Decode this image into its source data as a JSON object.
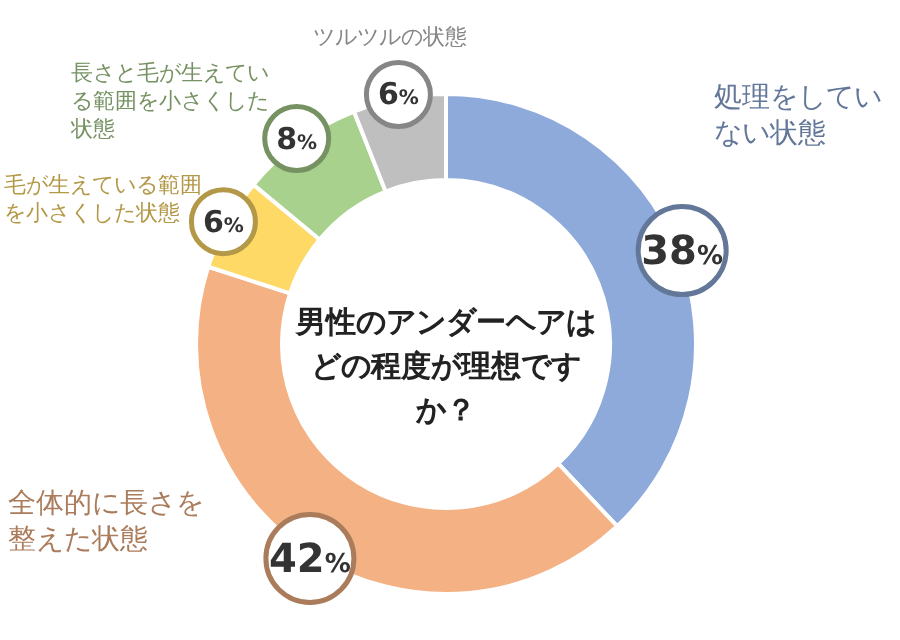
{
  "chart_data": {
    "type": "donut",
    "title": "男性のアンダーヘアはどの程度が理想ですか？",
    "categories": [
      "処理をしていない状態",
      "全体的に長さを整えた状態",
      "毛が生えている範囲を小さくした状態",
      "長さと毛が生えている範囲を小さくした状態",
      "ツルツルの状態"
    ],
    "values": [
      38,
      42,
      6,
      8,
      6
    ],
    "colors": [
      "#8eaadb",
      "#f4b183",
      "#ffd966",
      "#a9d18e",
      "#bfbfbf"
    ],
    "value_labels": [
      "38%",
      "42%",
      "6%",
      "8%",
      "6%"
    ]
  }
}
